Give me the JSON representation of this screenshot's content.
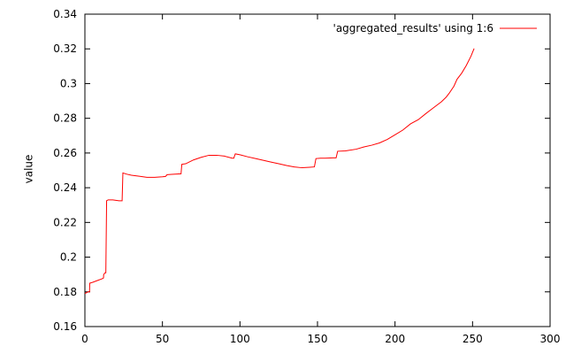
{
  "chart_data": {
    "type": "line",
    "title": "",
    "xlabel": "",
    "ylabel": "value",
    "xlim": [
      0,
      300
    ],
    "ylim": [
      0.16,
      0.34
    ],
    "x_ticks": [
      0,
      50,
      100,
      150,
      200,
      250,
      300
    ],
    "x_tick_labels": [
      "0",
      "50",
      "100",
      "150",
      "200",
      "250",
      "300"
    ],
    "y_ticks": [
      0.16,
      0.18,
      0.2,
      0.22,
      0.24,
      0.26,
      0.28,
      0.3,
      0.32,
      0.34
    ],
    "y_tick_labels": [
      "0.16",
      "0.18",
      "0.2",
      "0.22",
      "0.24",
      "0.26",
      "0.28",
      "0.3",
      "0.32",
      "0.34"
    ],
    "grid": false,
    "legend_position": "top-right",
    "series": [
      {
        "name": "'aggregated_results' using 1:6",
        "color": "#ff0000",
        "points": [
          [
            0,
            0.179
          ],
          [
            2,
            0.18
          ],
          [
            3,
            0.18
          ],
          [
            3.1,
            0.185
          ],
          [
            5,
            0.1855
          ],
          [
            8,
            0.1865
          ],
          [
            11,
            0.1875
          ],
          [
            12,
            0.188
          ],
          [
            12.1,
            0.19
          ],
          [
            13,
            0.191
          ],
          [
            13.5,
            0.191
          ],
          [
            14,
            0.2325
          ],
          [
            15,
            0.233
          ],
          [
            18,
            0.233
          ],
          [
            22,
            0.2325
          ],
          [
            24,
            0.2325
          ],
          [
            24.5,
            0.2485
          ],
          [
            27,
            0.2478
          ],
          [
            30,
            0.2472
          ],
          [
            35,
            0.2466
          ],
          [
            40,
            0.246
          ],
          [
            45,
            0.246
          ],
          [
            50,
            0.2463
          ],
          [
            52,
            0.2465
          ],
          [
            53,
            0.2475
          ],
          [
            56,
            0.2477
          ],
          [
            62,
            0.248
          ],
          [
            62.5,
            0.2535
          ],
          [
            65,
            0.2538
          ],
          [
            70,
            0.256
          ],
          [
            75,
            0.2575
          ],
          [
            80,
            0.2587
          ],
          [
            85,
            0.2587
          ],
          [
            90,
            0.2582
          ],
          [
            95,
            0.257
          ],
          [
            96,
            0.257
          ],
          [
            97,
            0.2595
          ],
          [
            100,
            0.259
          ],
          [
            105,
            0.2578
          ],
          [
            110,
            0.2568
          ],
          [
            115,
            0.2558
          ],
          [
            120,
            0.2548
          ],
          [
            125,
            0.2538
          ],
          [
            130,
            0.2528
          ],
          [
            135,
            0.252
          ],
          [
            140,
            0.2515
          ],
          [
            145,
            0.2518
          ],
          [
            148,
            0.252
          ],
          [
            149,
            0.2568
          ],
          [
            152,
            0.257
          ],
          [
            155,
            0.257
          ],
          [
            160,
            0.2572
          ],
          [
            162,
            0.2572
          ],
          [
            163,
            0.261
          ],
          [
            168,
            0.2612
          ],
          [
            175,
            0.2622
          ],
          [
            180,
            0.2635
          ],
          [
            185,
            0.2645
          ],
          [
            190,
            0.2658
          ],
          [
            195,
            0.2678
          ],
          [
            200,
            0.2705
          ],
          [
            205,
            0.2732
          ],
          [
            210,
            0.2768
          ],
          [
            215,
            0.2792
          ],
          [
            220,
            0.2828
          ],
          [
            225,
            0.2862
          ],
          [
            230,
            0.2896
          ],
          [
            233,
            0.2922
          ],
          [
            235,
            0.2945
          ],
          [
            238,
            0.2985
          ],
          [
            240,
            0.3025
          ],
          [
            243,
            0.306
          ],
          [
            246,
            0.3105
          ],
          [
            249,
            0.3158
          ],
          [
            251,
            0.3202
          ]
        ]
      }
    ]
  }
}
